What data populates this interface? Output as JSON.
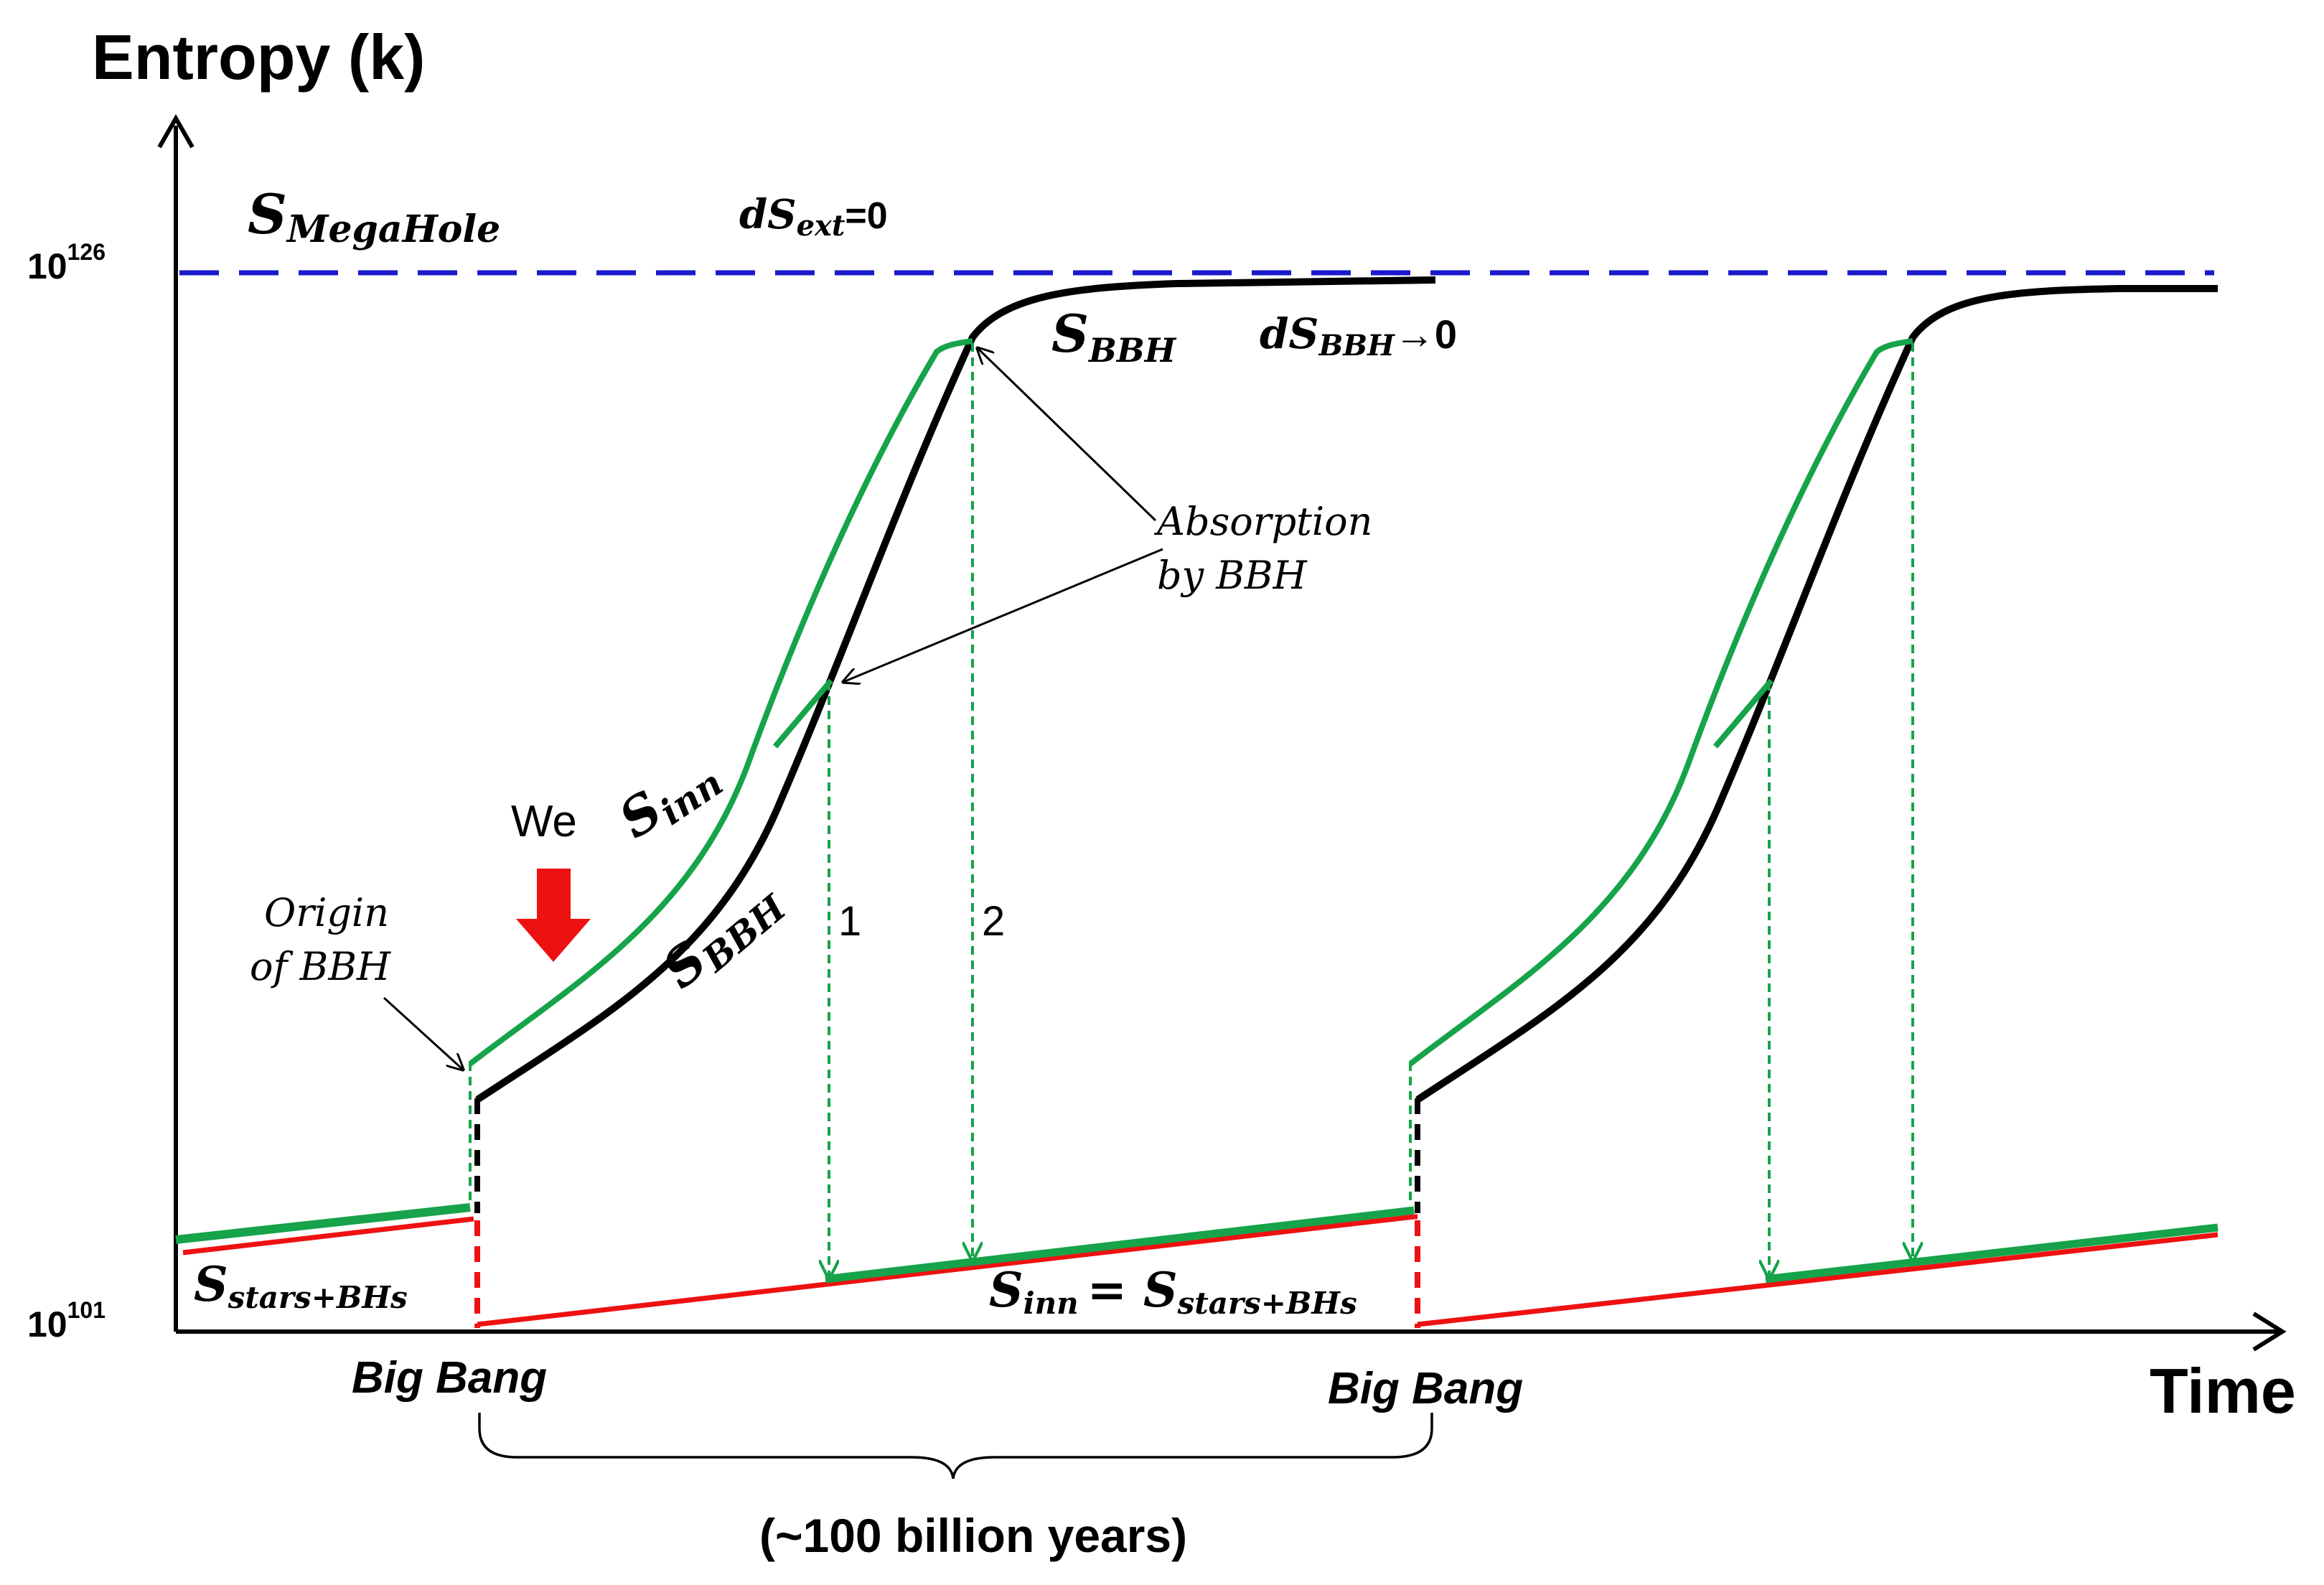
{
  "axes": {
    "y_title": "Entropy (k)",
    "x_title": "Time",
    "y_top_base": "10",
    "y_top_exp": "126",
    "y_bottom_base": "10",
    "y_bottom_exp": "101"
  },
  "labels": {
    "megahole_main": "S",
    "megahole_sub": "MegaHole",
    "dsext_main": "dS",
    "dsext_sub": "ext",
    "dsext_tail": "=0",
    "sbbh_top_main": "S",
    "sbbh_top_sub": "BBH",
    "dsbbh_main": "dS",
    "dsbbh_sub": "BBH",
    "dsbbh_tail": "→0",
    "absorption_line1": "Absorption",
    "absorption_line2": "by  BBH",
    "sinn_main": "S",
    "sinn_sub": "inn",
    "sbbh_curve_main": "S",
    "sbbh_curve_sub": "BBH",
    "we": "We",
    "origin_line1": "Origin",
    "origin_line2": "of BBH",
    "num1": "1",
    "num2": "2",
    "stars_main": "S",
    "stars_sub": "stars+BHs",
    "eq_s1": "S",
    "eq_sub1": "inn",
    "eq_mid": "= S",
    "eq_sub2": "stars+BHs",
    "bigbang_1": "Big Bang",
    "bigbang_2": "Big Bang",
    "duration": "(~100 billion years)"
  },
  "colors": {
    "blue_dashed": "#1a1acc",
    "green": "#16a34a",
    "black": "#000000",
    "red": "#ee1111"
  }
}
